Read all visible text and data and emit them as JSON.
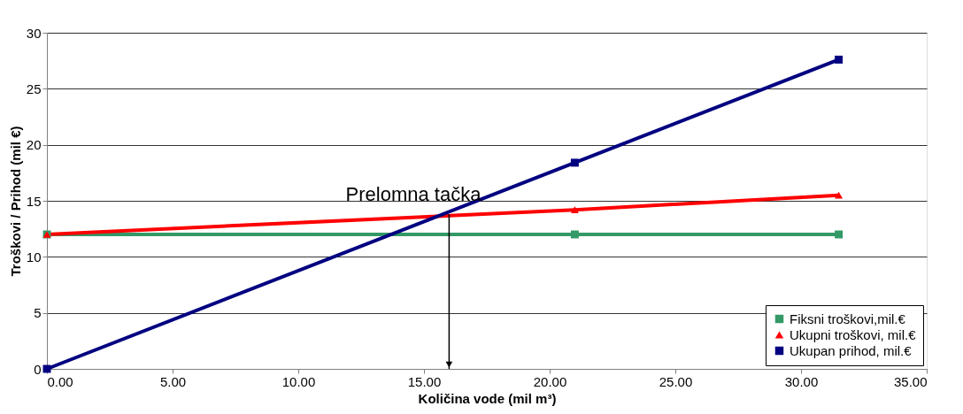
{
  "chart_data": {
    "type": "line",
    "x": [
      0,
      21,
      31.5
    ],
    "series": [
      {
        "name": "Fiksni troškovi,mil.€",
        "color": "#339966",
        "marker": "square",
        "values": [
          12,
          12,
          12
        ]
      },
      {
        "name": "Ukupni troškovi, mil.€",
        "color": "#ff0000",
        "marker": "triangle",
        "values": [
          12,
          14.2,
          15.5
        ]
      },
      {
        "name": "Ukupan prihod, mil.€",
        "color": "#000080",
        "marker": "square",
        "values": [
          0,
          18.4,
          27.6
        ]
      }
    ],
    "xlabel": "Količina vode (mil m³)",
    "ylabel": "Troškovi / Prihod (mil €)",
    "xlim": [
      0,
      35
    ],
    "ylim": [
      0,
      30
    ],
    "xticks": [
      {
        "value": 0,
        "label": "0.00"
      },
      {
        "value": 5,
        "label": "5.00"
      },
      {
        "value": 10,
        "label": "10.00"
      },
      {
        "value": 15,
        "label": "15.00"
      },
      {
        "value": 20,
        "label": "20.00"
      },
      {
        "value": 25,
        "label": "25.00"
      },
      {
        "value": 30,
        "label": "30.00"
      },
      {
        "value": 35,
        "label": "35.00"
      }
    ],
    "yticks": [
      0,
      5,
      10,
      15,
      20,
      25,
      30
    ],
    "annotations": [
      {
        "text": "Prelomna tačka",
        "x": 16,
        "y": 13.8
      }
    ],
    "grid": "y",
    "legend": "bottom right",
    "line_style": "solid"
  }
}
